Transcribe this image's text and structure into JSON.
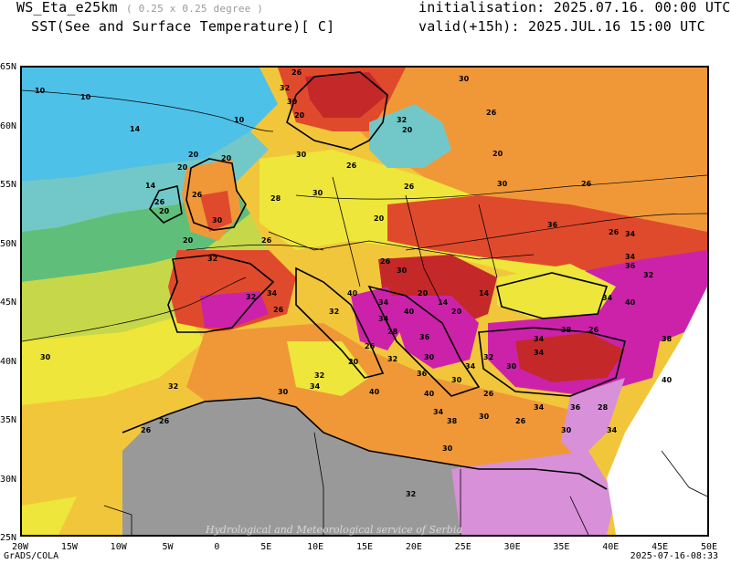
{
  "header": {
    "model": "WS_Eta_e25km",
    "resolution": "( 0.25 x 0.25 degree )",
    "variable": "SST(See and Surface Temperature)[ C]",
    "init": "initialisation: 2025.07.16. 00:00 UTC",
    "valid": "valid(+15h): 2025.JUL.16 15:00 UTC"
  },
  "map": {
    "lat_labels": [
      "65N",
      "60N",
      "55N",
      "50N",
      "45N",
      "40N",
      "35N",
      "30N",
      "25N"
    ],
    "lon_labels": [
      "20W",
      "15W",
      "10W",
      "5W",
      "0",
      "5E",
      "10E",
      "15E",
      "20E",
      "25E",
      "30E",
      "35E",
      "40E",
      "45E",
      "50E"
    ],
    "contour_labels": [
      "10",
      "10",
      "10",
      "20",
      "14",
      "14",
      "20",
      "26",
      "20",
      "20",
      "30",
      "26",
      "20",
      "28",
      "26",
      "26",
      "20",
      "32",
      "30",
      "30",
      "26",
      "20",
      "26",
      "20",
      "32",
      "30",
      "26",
      "20",
      "30",
      "36",
      "26",
      "26",
      "34",
      "36",
      "32",
      "40",
      "34",
      "38",
      "34",
      "40",
      "34",
      "38",
      "26",
      "34",
      "30",
      "34",
      "32",
      "36",
      "28",
      "34",
      "40",
      "34",
      "30",
      "38",
      "26",
      "30",
      "34",
      "26",
      "30",
      "36",
      "32",
      "28",
      "34",
      "34",
      "40",
      "36",
      "30",
      "20",
      "26",
      "40",
      "30",
      "34",
      "32",
      "32",
      "26",
      "26",
      "30",
      "32",
      "34",
      "26",
      "32",
      "30",
      "40",
      "32",
      "26",
      "30",
      "20",
      "14",
      "20",
      "14",
      "32",
      "30"
    ],
    "credit": "Hydrological and Meteorological service of Serbia"
  },
  "footer": {
    "left": "GrADS/COLA",
    "right": "2025-07-16-08:33"
  },
  "colors": {
    "t10": "#4ec1e8",
    "t14": "#72c8c8",
    "t18": "#5fbf7a",
    "t20": "#c6d84a",
    "t22": "#eee63a",
    "t24": "#f2c63a",
    "t26": "#f09838",
    "t28": "#ee7a32",
    "t30": "#e04a2c",
    "t32": "#c42828",
    "t34": "#cc22aa",
    "t36": "#b030c8",
    "t38": "#d890d8",
    "land_missing": "#999999"
  }
}
